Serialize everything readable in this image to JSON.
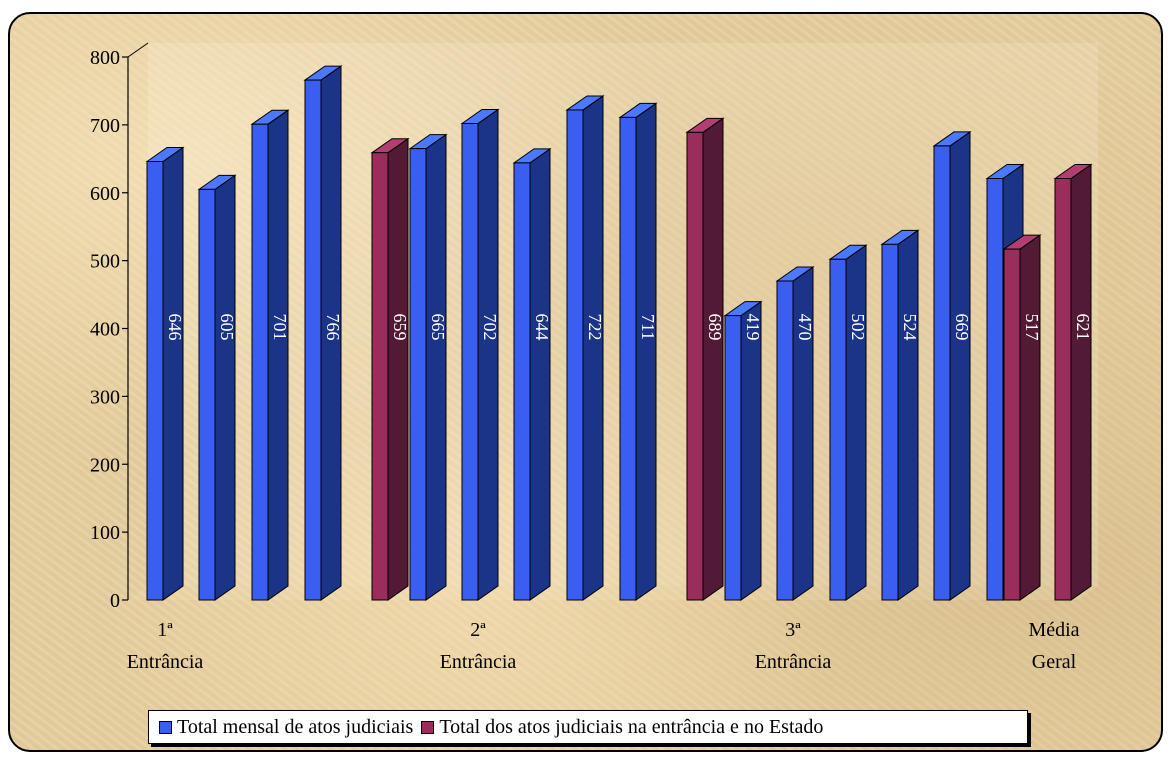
{
  "chart_data": {
    "type": "bar",
    "title": "",
    "xlabel": "",
    "ylabel": "",
    "ylim": [
      0,
      800
    ],
    "yticks": [
      0,
      100,
      200,
      300,
      400,
      500,
      600,
      700,
      800
    ],
    "grid": false,
    "legend_position": "bottom",
    "series": [
      {
        "name": "Total mensal de atos judiciais",
        "color": "#3a5ff0"
      },
      {
        "name": "Total dos atos judiciais na entrância e no Estado",
        "color": "#9b2d5d"
      }
    ],
    "bars": [
      {
        "value": 646,
        "series": 0
      },
      {
        "value": 605,
        "series": 0
      },
      {
        "value": 701,
        "series": 0
      },
      {
        "value": 766,
        "series": 0
      },
      {
        "value": 659,
        "series": 1
      },
      {
        "value": 665,
        "series": 0
      },
      {
        "value": 702,
        "series": 0
      },
      {
        "value": 644,
        "series": 0
      },
      {
        "value": 722,
        "series": 0
      },
      {
        "value": 711,
        "series": 0
      },
      {
        "value": 689,
        "series": 1
      },
      {
        "value": 419,
        "series": 0
      },
      {
        "value": 470,
        "series": 0
      },
      {
        "value": 502,
        "series": 0
      },
      {
        "value": 524,
        "series": 0
      },
      {
        "value": 669,
        "series": 0
      },
      {
        "value": 621,
        "series": 0
      },
      {
        "value": 517,
        "series": 1
      },
      {
        "value": 621,
        "series": 1
      }
    ],
    "category_labels": [
      {
        "line1": "1ª",
        "line2": "Entrância"
      },
      {
        "line1": "2ª",
        "line2": "Entrância"
      },
      {
        "line1": "3ª",
        "line2": "Entrância"
      },
      {
        "line1": "Média",
        "line2": "Geral"
      }
    ]
  }
}
